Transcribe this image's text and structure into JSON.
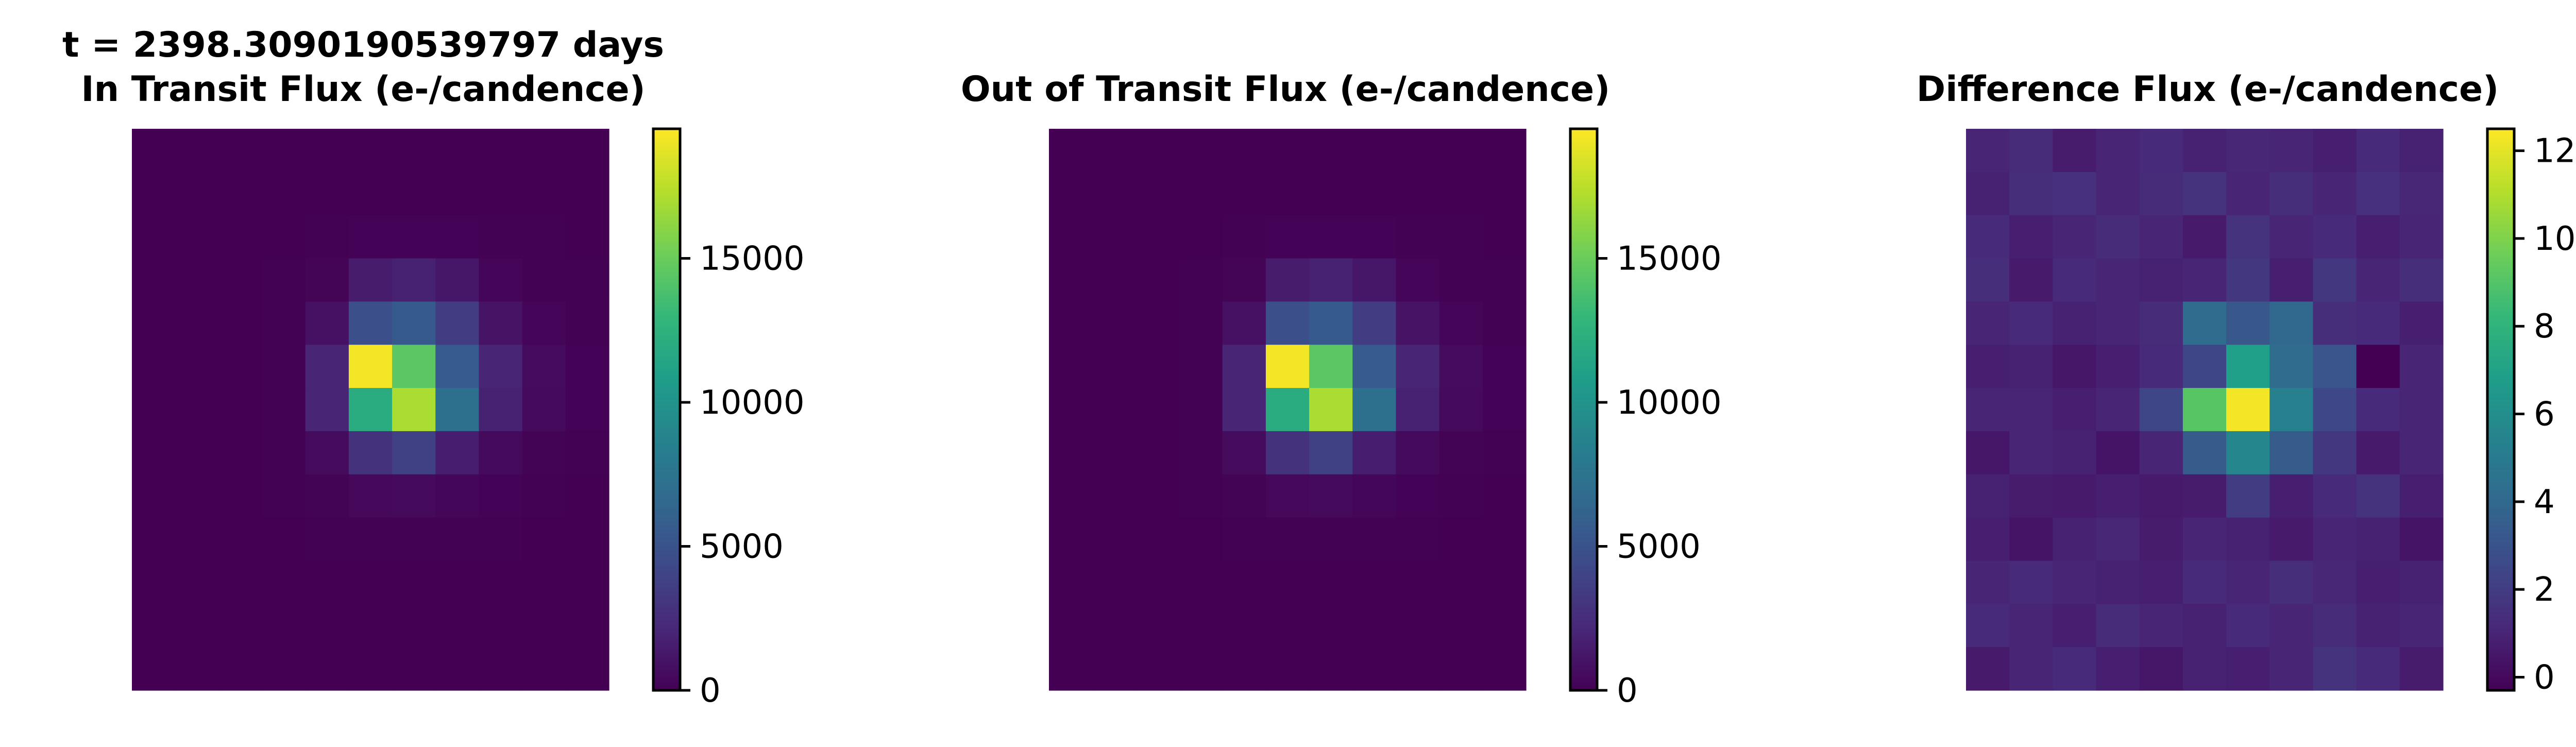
{
  "colormap": {
    "name": "viridis",
    "stops": [
      "#440154",
      "#482878",
      "#3e4989",
      "#31688e",
      "#26828e",
      "#1f9e89",
      "#35b779",
      "#6ece58",
      "#b5de2b",
      "#fde725"
    ]
  },
  "chart_data": [
    {
      "type": "heatmap",
      "title": "In Transit Flux (e-/candence)",
      "supertitle": "t = 2398.3090190539797 days",
      "xlabel": "",
      "ylabel": "",
      "colorbar_range": [
        0,
        19500
      ],
      "colorbar_ticks": [
        0,
        5000,
        10000,
        15000
      ],
      "colorbar_tick_labels": [
        "0",
        "5000",
        "10000",
        "15000"
      ],
      "grid": false,
      "values": [
        [
          20,
          20,
          20,
          20,
          20,
          20,
          20,
          20,
          20,
          20,
          20
        ],
        [
          20,
          20,
          20,
          20,
          20,
          20,
          20,
          20,
          20,
          20,
          20
        ],
        [
          20,
          20,
          20,
          20,
          60,
          120,
          120,
          100,
          60,
          30,
          20
        ],
        [
          20,
          20,
          20,
          30,
          200,
          1500,
          1800,
          1200,
          300,
          80,
          30
        ],
        [
          20,
          20,
          20,
          50,
          900,
          4800,
          5500,
          3500,
          1000,
          300,
          60
        ],
        [
          20,
          20,
          20,
          80,
          2000,
          19200,
          14500,
          5600,
          2000,
          600,
          100
        ],
        [
          20,
          20,
          20,
          80,
          2000,
          12000,
          17000,
          7200,
          1800,
          500,
          100
        ],
        [
          20,
          20,
          20,
          50,
          600,
          2800,
          3800,
          1600,
          500,
          150,
          40
        ],
        [
          20,
          20,
          20,
          30,
          150,
          400,
          500,
          250,
          100,
          40,
          20
        ],
        [
          20,
          20,
          20,
          20,
          40,
          60,
          60,
          50,
          30,
          20,
          20
        ],
        [
          20,
          20,
          20,
          20,
          20,
          20,
          20,
          20,
          20,
          20,
          20
        ],
        [
          20,
          20,
          20,
          20,
          20,
          20,
          20,
          20,
          20,
          20,
          20
        ],
        [
          20,
          20,
          20,
          20,
          20,
          20,
          20,
          20,
          20,
          20,
          20
        ]
      ]
    },
    {
      "type": "heatmap",
      "title": "Out of Transit Flux (e-/candence)",
      "xlabel": "",
      "ylabel": "",
      "colorbar_range": [
        0,
        19500
      ],
      "colorbar_ticks": [
        0,
        5000,
        10000,
        15000
      ],
      "colorbar_tick_labels": [
        "0",
        "5000",
        "10000",
        "15000"
      ],
      "grid": false,
      "values": [
        [
          20,
          20,
          20,
          20,
          20,
          20,
          20,
          20,
          20,
          20,
          20
        ],
        [
          20,
          20,
          20,
          20,
          20,
          20,
          20,
          20,
          20,
          20,
          20
        ],
        [
          20,
          20,
          20,
          20,
          60,
          120,
          120,
          100,
          60,
          30,
          20
        ],
        [
          20,
          20,
          20,
          30,
          200,
          1500,
          1800,
          1200,
          300,
          80,
          30
        ],
        [
          20,
          20,
          20,
          50,
          900,
          4800,
          5500,
          3500,
          1000,
          300,
          60
        ],
        [
          20,
          20,
          20,
          80,
          2000,
          19200,
          14500,
          5600,
          2000,
          600,
          100
        ],
        [
          20,
          20,
          20,
          80,
          2000,
          12000,
          17000,
          7200,
          1800,
          500,
          100
        ],
        [
          20,
          20,
          20,
          50,
          600,
          2800,
          3800,
          1600,
          500,
          150,
          40
        ],
        [
          20,
          20,
          20,
          30,
          150,
          400,
          500,
          250,
          100,
          40,
          20
        ],
        [
          20,
          20,
          20,
          20,
          40,
          60,
          60,
          50,
          30,
          20,
          20
        ],
        [
          20,
          20,
          20,
          20,
          20,
          20,
          20,
          20,
          20,
          20,
          20
        ],
        [
          20,
          20,
          20,
          20,
          20,
          20,
          20,
          20,
          20,
          20,
          20
        ],
        [
          20,
          20,
          20,
          20,
          20,
          20,
          20,
          20,
          20,
          20,
          20
        ]
      ]
    },
    {
      "type": "heatmap",
      "title": "Difference Flux (e-/candence)",
      "xlabel": "",
      "ylabel": "",
      "colorbar_range": [
        -0.3,
        12.5
      ],
      "colorbar_ticks": [
        0,
        2,
        4,
        6,
        8,
        10,
        12
      ],
      "colorbar_tick_labels": [
        "0",
        "2",
        "4",
        "6",
        "8",
        "10",
        "12"
      ],
      "grid": false,
      "values": [
        [
          1.0,
          1.3,
          0.7,
          1.0,
          1.2,
          0.9,
          1.1,
          1.0,
          0.8,
          1.2,
          0.9
        ],
        [
          0.9,
          1.4,
          1.5,
          1.0,
          1.3,
          1.6,
          1.0,
          1.4,
          1.0,
          1.5,
          1.1
        ],
        [
          1.2,
          0.8,
          1.0,
          1.3,
          1.0,
          0.6,
          1.6,
          1.0,
          1.2,
          0.8,
          1.0
        ],
        [
          1.4,
          0.6,
          1.2,
          1.0,
          0.9,
          1.0,
          1.8,
          0.8,
          1.8,
          1.0,
          1.4
        ],
        [
          1.0,
          1.2,
          0.9,
          1.0,
          1.3,
          4.2,
          3.2,
          4.0,
          1.4,
          1.2,
          0.8
        ],
        [
          0.8,
          0.9,
          0.5,
          0.8,
          1.2,
          2.4,
          6.9,
          4.2,
          3.1,
          -0.3,
          1.0
        ],
        [
          1.0,
          1.0,
          0.8,
          1.0,
          2.4,
          9.1,
          12.3,
          5.3,
          2.5,
          1.2,
          1.0
        ],
        [
          0.5,
          1.0,
          0.9,
          0.4,
          1.0,
          3.4,
          5.6,
          3.4,
          1.8,
          0.6,
          1.0
        ],
        [
          0.9,
          0.7,
          0.6,
          0.8,
          0.6,
          0.7,
          2.0,
          0.8,
          1.2,
          1.6,
          0.8
        ],
        [
          0.8,
          0.4,
          0.9,
          1.1,
          0.7,
          1.0,
          0.9,
          0.6,
          1.0,
          0.9,
          0.4
        ],
        [
          1.0,
          1.2,
          1.0,
          0.9,
          0.8,
          1.2,
          1.0,
          1.4,
          1.1,
          0.8,
          0.9
        ],
        [
          1.2,
          1.0,
          0.8,
          1.3,
          1.0,
          0.9,
          1.2,
          1.0,
          1.3,
          0.9,
          1.0
        ],
        [
          0.6,
          1.0,
          1.2,
          0.8,
          0.5,
          0.9,
          0.8,
          1.0,
          1.6,
          1.2,
          0.7
        ]
      ]
    }
  ]
}
